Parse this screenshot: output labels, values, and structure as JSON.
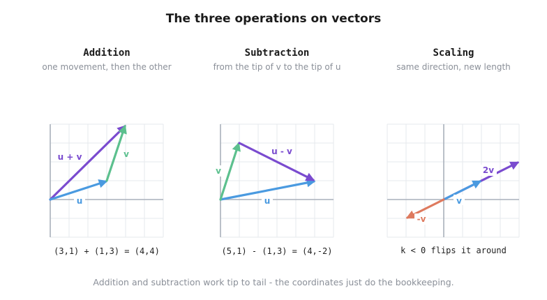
{
  "title": "The three operations on vectors",
  "footer": "Addition and subtraction work tip to tail - the coordinates just do the bookkeeping.",
  "colors": {
    "blue": "#4a9ae0",
    "green": "#5cc08e",
    "purple": "#7a4bcf",
    "orange": "#de7a5e",
    "grid": "#e6e8ec",
    "axis": "#a9b0bb"
  },
  "panels": [
    {
      "title": "Addition",
      "subtitle": "one movement, then the other",
      "equation": "(3,1) + (1,3) = (4,4)",
      "labels": {
        "u": "u",
        "v": "v",
        "result": "u + v"
      }
    },
    {
      "title": "Subtraction",
      "subtitle": "from the tip of v to the tip of u",
      "equation": "(5,1) - (1,3) = (4,-2)",
      "labels": {
        "u": "u",
        "v": "v",
        "result": "u - v"
      }
    },
    {
      "title": "Scaling",
      "subtitle": "same direction, new length",
      "equation": "k < 0 flips it around",
      "labels": {
        "v": "v",
        "double": "2v",
        "neg": "-v"
      }
    }
  ]
}
